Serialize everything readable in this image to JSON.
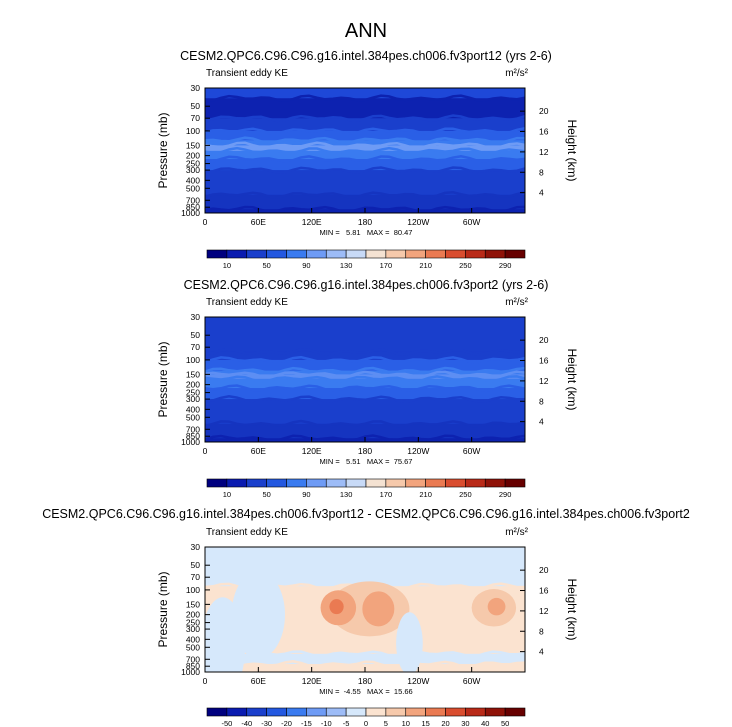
{
  "figure": {
    "main_title": "ANN"
  },
  "colors": {
    "frame": "#000000",
    "background": "#ffffff"
  },
  "chart_data": [
    {
      "type": "heatmap",
      "title": "CESM2.QPC6.C96.C96.g16.intel.384pes.ch006.fv3port12 (yrs 2-6)",
      "left_string": "Transient eddy KE",
      "units": "m²/s²",
      "ylabel": "Pressure (mb)",
      "y2label": "Height (km)",
      "x_ticks": [
        "0",
        "60E",
        "120E",
        "180",
        "120W",
        "60W"
      ],
      "y_ticks": [
        "30",
        "50",
        "70",
        "100",
        "150",
        "200",
        "250",
        "300",
        "400",
        "500",
        "700",
        "850",
        "1000"
      ],
      "y2_ticks": [
        "20",
        "16",
        "12",
        "8",
        "4"
      ],
      "min_max_label": "MIN =   5.81   MAX =  80.47",
      "min": 5.81,
      "max": 80.47,
      "colorbar": {
        "levels": [
          "10",
          "50",
          "90",
          "130",
          "170",
          "210",
          "250",
          "290"
        ],
        "colors": [
          "#00007f",
          "#0a1bb0",
          "#1a3fcc",
          "#2358e0",
          "#3a7bf0",
          "#6e9bf5",
          "#9dbcf7",
          "#c8daf7",
          "#f4e2d2",
          "#f6c9ab",
          "#f2a47d",
          "#ea7a52",
          "#d94d2f",
          "#b92a18",
          "#8f1208",
          "#670000"
        ]
      },
      "bands": [
        {
          "level": 30,
          "color": "#1e48d8"
        },
        {
          "level": 40,
          "color": "#0d22b0"
        },
        {
          "level": 70,
          "color": "#1a3fcc"
        },
        {
          "level": 100,
          "color": "#2a5fe6"
        },
        {
          "level": 130,
          "color": "#3a7bf0"
        },
        {
          "level": 150,
          "color": "#6e9bf5"
        },
        {
          "level": 175,
          "color": "#3a7bf0"
        },
        {
          "level": 220,
          "color": "#2a5fe6"
        },
        {
          "level": 300,
          "color": "#1a3fcc"
        },
        {
          "level": 600,
          "color": "#1534c0"
        },
        {
          "level": 900,
          "color": "#0d22b0"
        }
      ]
    },
    {
      "type": "heatmap",
      "title": "CESM2.QPC6.C96.C96.g16.intel.384pes.ch006.fv3port2 (yrs 2-6)",
      "left_string": "Transient eddy KE",
      "units": "m²/s²",
      "ylabel": "Pressure (mb)",
      "y2label": "Height (km)",
      "x_ticks": [
        "0",
        "60E",
        "120E",
        "180",
        "120W",
        "60W"
      ],
      "y_ticks": [
        "30",
        "50",
        "70",
        "100",
        "150",
        "200",
        "250",
        "300",
        "400",
        "500",
        "700",
        "850",
        "1000"
      ],
      "y2_ticks": [
        "20",
        "16",
        "12",
        "8",
        "4"
      ],
      "min_max_label": "MIN =   5.51   MAX =  75.67",
      "min": 5.51,
      "max": 75.67,
      "colorbar": {
        "levels": [
          "10",
          "50",
          "90",
          "130",
          "170",
          "210",
          "250",
          "290"
        ],
        "colors": [
          "#00007f",
          "#0a1bb0",
          "#1a3fcc",
          "#2358e0",
          "#3a7bf0",
          "#6e9bf5",
          "#9dbcf7",
          "#c8daf7",
          "#f4e2d2",
          "#f6c9ab",
          "#f2a47d",
          "#ea7a52",
          "#d94d2f",
          "#b92a18",
          "#8f1208",
          "#670000"
        ]
      },
      "bands": [
        {
          "level": 30,
          "color": "#1a3fcc"
        },
        {
          "level": 80,
          "color": "#1a3fcc"
        },
        {
          "level": 100,
          "color": "#2a5fe6"
        },
        {
          "level": 135,
          "color": "#3a7bf0"
        },
        {
          "level": 150,
          "color": "#5d8ef3"
        },
        {
          "level": 170,
          "color": "#3a7bf0"
        },
        {
          "level": 220,
          "color": "#2a5fe6"
        },
        {
          "level": 300,
          "color": "#1a3fcc"
        },
        {
          "level": 600,
          "color": "#1534c0"
        },
        {
          "level": 900,
          "color": "#0d22b0"
        }
      ]
    },
    {
      "type": "heatmap",
      "title": "CESM2.QPC6.C96.C96.g16.intel.384pes.ch006.fv3port12 - CESM2.QPC6.C96.C96.g16.intel.384pes.ch006.fv3port2",
      "left_string": "Transient eddy KE",
      "units": "m²/s²",
      "ylabel": "Pressure (mb)",
      "y2label": "Height (km)",
      "x_ticks": [
        "0",
        "60E",
        "120E",
        "180",
        "120W",
        "60W"
      ],
      "y_ticks": [
        "30",
        "50",
        "70",
        "100",
        "150",
        "200",
        "250",
        "300",
        "400",
        "500",
        "700",
        "850",
        "1000"
      ],
      "y2_ticks": [
        "20",
        "16",
        "12",
        "8",
        "4"
      ],
      "min_max_label": "MIN =  -4.55   MAX =  15.66",
      "min": -4.55,
      "max": 15.66,
      "colorbar": {
        "levels": [
          "-50",
          "-40",
          "-30",
          "-20",
          "-15",
          "-10",
          "-5",
          "0",
          "5",
          "10",
          "15",
          "20",
          "30",
          "40",
          "50"
        ],
        "colors": [
          "#00007f",
          "#0a1bb0",
          "#1a3fcc",
          "#2358e0",
          "#3a7bf0",
          "#6e9bf5",
          "#9dbcf7",
          "#d6e8fb",
          "#fbe3d0",
          "#f6c9ab",
          "#f2a47d",
          "#ea7a52",
          "#d94d2f",
          "#b92a18",
          "#8f1208",
          "#670000"
        ]
      },
      "bands": [
        {
          "level": 30,
          "color": "#d6e8fb"
        },
        {
          "level": 90,
          "color": "#fbe3d0"
        },
        {
          "level": 600,
          "color": "#d6e8fb"
        },
        {
          "level": 800,
          "color": "#fbe3d0"
        }
      ],
      "blobs": [
        {
          "lon": 185,
          "p": 170,
          "rx": 45,
          "rp": 0.22,
          "color": "#f6c9ab"
        },
        {
          "lon": 150,
          "p": 165,
          "rx": 20,
          "rp": 0.14,
          "color": "#f2a47d"
        },
        {
          "lon": 195,
          "p": 170,
          "rx": 18,
          "rp": 0.14,
          "color": "#f2a47d"
        },
        {
          "lon": 148,
          "p": 160,
          "rx": 8,
          "rp": 0.06,
          "color": "#ea7a52"
        },
        {
          "lon": 325,
          "p": 165,
          "rx": 25,
          "rp": 0.15,
          "color": "#f6c9ab"
        },
        {
          "lon": 328,
          "p": 160,
          "rx": 10,
          "rp": 0.07,
          "color": "#f2a47d"
        },
        {
          "lon": 60,
          "p": 200,
          "rx": 30,
          "rp": 0.35,
          "color": "#d6e8fb"
        },
        {
          "lon": 20,
          "p": 500,
          "rx": 25,
          "rp": 0.4,
          "color": "#d6e8fb"
        },
        {
          "lon": 230,
          "p": 450,
          "rx": 15,
          "rp": 0.25,
          "color": "#d6e8fb"
        }
      ]
    }
  ]
}
